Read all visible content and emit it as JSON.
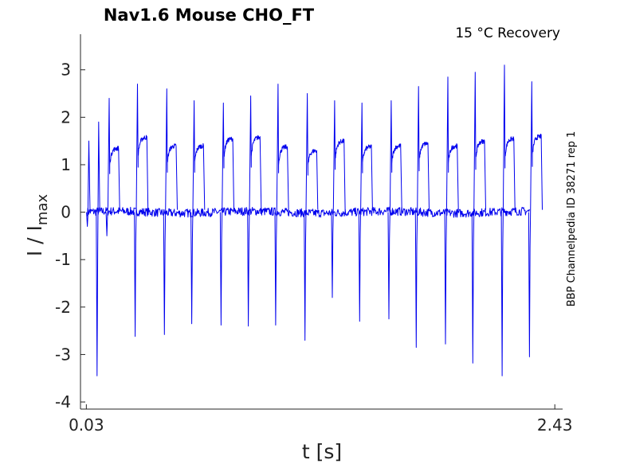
{
  "chart_data": {
    "type": "line",
    "title": "Nav1.6  Mouse  CHO_FT",
    "annotation": "15 °C  Recovery",
    "side_label": "BBP Channelpedia ID 38271 rep 1",
    "xlabel": "t [s]",
    "ylabel_main": "I / I",
    "ylabel_sub": "max",
    "xlim": [
      0,
      2.47
    ],
    "ylim": [
      -4.15,
      3.75
    ],
    "x_ticks": [
      {
        "value": 0.03,
        "label": "0.03"
      },
      {
        "value": 2.43,
        "label": "2.43"
      }
    ],
    "y_ticks": [
      {
        "value": 3,
        "label": "3"
      },
      {
        "value": 2,
        "label": "2"
      },
      {
        "value": 1,
        "label": "1"
      },
      {
        "value": 0,
        "label": "0"
      },
      {
        "value": -1,
        "label": "-1"
      },
      {
        "value": -2,
        "label": "-2"
      },
      {
        "value": -3,
        "label": "-3"
      },
      {
        "value": -4,
        "label": "-4"
      }
    ],
    "grid": false,
    "color": "#0000ee",
    "series_style": "noisy current traces near zero with transient peaks",
    "events": [
      {
        "t": 0.035,
        "neg": -0.3,
        "pos": 1.5,
        "plateau": 0.0
      },
      {
        "t": 0.085,
        "neg": -3.45,
        "pos": 1.9,
        "plateau": 0.0
      },
      {
        "t": 0.135,
        "neg": -0.5,
        "pos": 2.4,
        "plateau": 1.35
      },
      {
        "t": 0.28,
        "neg": -2.62,
        "pos": 2.7,
        "plateau": 1.58
      },
      {
        "t": 0.43,
        "neg": -2.58,
        "pos": 2.6,
        "plateau": 1.4
      },
      {
        "t": 0.57,
        "neg": -2.35,
        "pos": 2.35,
        "plateau": 1.4
      },
      {
        "t": 0.72,
        "neg": -2.38,
        "pos": 2.3,
        "plateau": 1.55
      },
      {
        "t": 0.86,
        "neg": -2.4,
        "pos": 2.45,
        "plateau": 1.58
      },
      {
        "t": 1.0,
        "neg": -2.38,
        "pos": 2.7,
        "plateau": 1.38
      },
      {
        "t": 1.15,
        "neg": -2.7,
        "pos": 2.5,
        "plateau": 1.3
      },
      {
        "t": 1.29,
        "neg": -1.8,
        "pos": 2.35,
        "plateau": 1.5
      },
      {
        "t": 1.43,
        "neg": -2.3,
        "pos": 2.3,
        "plateau": 1.38
      },
      {
        "t": 1.58,
        "neg": -2.25,
        "pos": 2.35,
        "plateau": 1.4
      },
      {
        "t": 1.72,
        "neg": -2.85,
        "pos": 2.65,
        "plateau": 1.45
      },
      {
        "t": 1.87,
        "neg": -2.78,
        "pos": 2.85,
        "plateau": 1.4
      },
      {
        "t": 2.01,
        "neg": -3.18,
        "pos": 2.95,
        "plateau": 1.5
      },
      {
        "t": 2.16,
        "neg": -3.45,
        "pos": 3.1,
        "plateau": 1.55
      },
      {
        "t": 2.3,
        "neg": -3.05,
        "pos": 2.75,
        "plateau": 1.6
      }
    ]
  }
}
